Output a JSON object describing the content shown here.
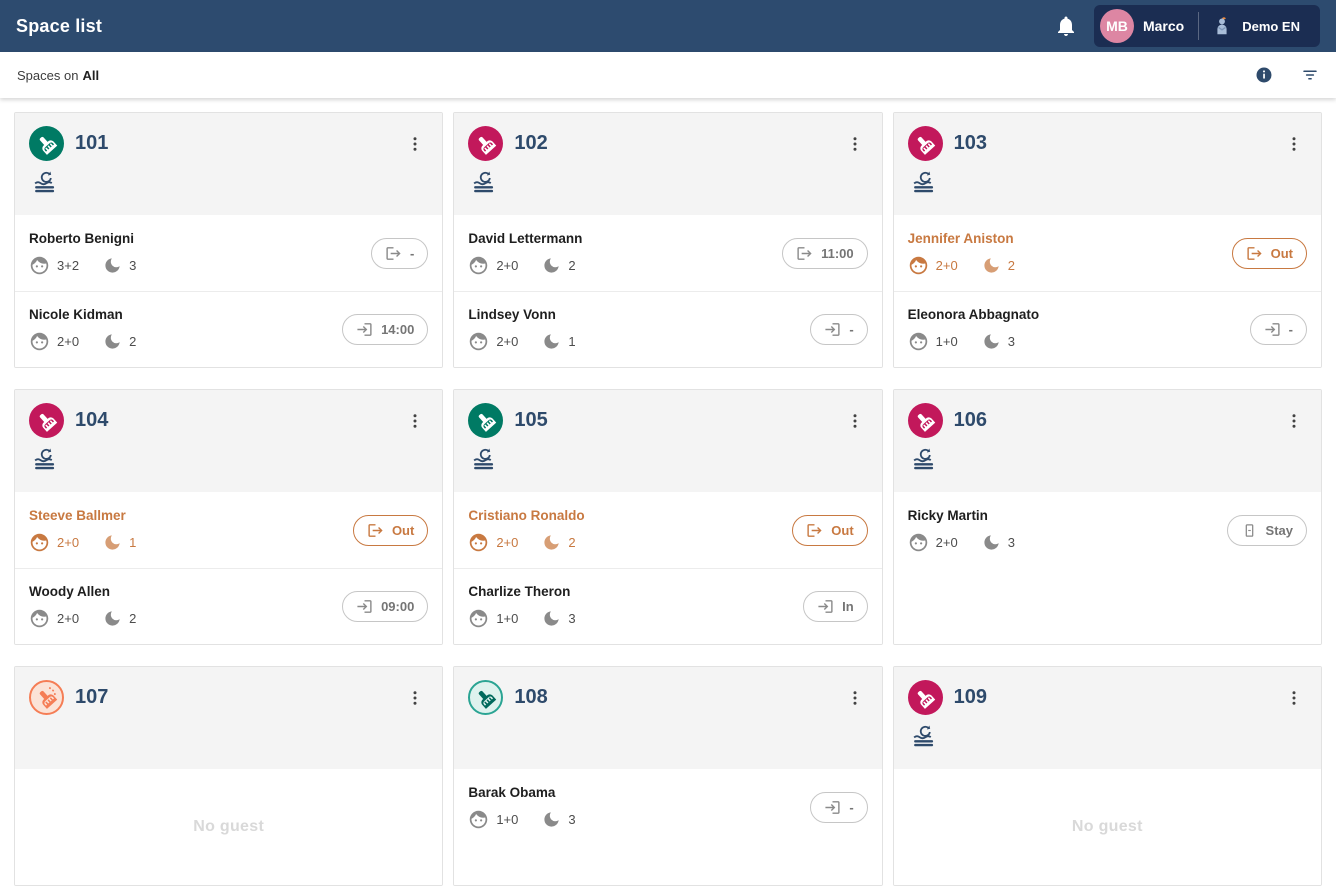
{
  "app_bar": {
    "title": "Space list",
    "user": {
      "initials": "MB",
      "name": "Marco"
    },
    "property": {
      "name": "Demo EN"
    }
  },
  "subheader": {
    "label_prefix": "Spaces on",
    "filter_value": "All"
  },
  "empty_label": "No guest",
  "colors": {
    "topbar": "#2d4b6f",
    "topbar_pill": "#1b2d52",
    "avatar_pink": "#dd86a3",
    "navy_text": "#2e4a6b",
    "status_clean": "#007a64",
    "status_dirty": "#c2185b",
    "status_cleaning": "#f57d55",
    "status_inspected": "#2aa493",
    "guest_highlight": "#c87941",
    "header_bg": "#f4f4f4"
  },
  "icons": {
    "bell": "notifications-icon",
    "broom": "housekeeping-broom-icon",
    "linen": "linen-change-icon",
    "face": "guest-face-icon",
    "moon": "nights-moon-icon",
    "checkout": "checkout-door-icon",
    "checkin": "checkin-door-icon",
    "stay": "stay-door-icon",
    "info": "info-icon",
    "filter": "filter-icon",
    "kebab": "more-menu-icon"
  },
  "cards": [
    {
      "room": "101",
      "status": "clean",
      "linen_change": true,
      "guests": [
        {
          "name": "Roberto Benigni",
          "highlight": false,
          "pax": "3+2",
          "nights": "3",
          "action": {
            "type": "checkout",
            "label": "-"
          }
        },
        {
          "name": "Nicole Kidman",
          "highlight": false,
          "pax": "2+0",
          "nights": "2",
          "action": {
            "type": "checkin",
            "label": "14:00"
          }
        }
      ]
    },
    {
      "room": "102",
      "status": "dirty",
      "linen_change": true,
      "guests": [
        {
          "name": "David Lettermann",
          "highlight": false,
          "pax": "2+0",
          "nights": "2",
          "action": {
            "type": "checkout",
            "label": "11:00"
          }
        },
        {
          "name": "Lindsey Vonn",
          "highlight": false,
          "pax": "2+0",
          "nights": "1",
          "action": {
            "type": "checkin",
            "label": "-"
          }
        }
      ]
    },
    {
      "room": "103",
      "status": "dirty",
      "linen_change": true,
      "guests": [
        {
          "name": "Jennifer Aniston",
          "highlight": true,
          "pax": "2+0",
          "nights": "2",
          "action": {
            "type": "checkout",
            "label": "Out"
          }
        },
        {
          "name": "Eleonora Abbagnato",
          "highlight": false,
          "pax": "1+0",
          "nights": "3",
          "action": {
            "type": "checkin",
            "label": "-"
          }
        }
      ]
    },
    {
      "room": "104",
      "status": "dirty",
      "linen_change": true,
      "guests": [
        {
          "name": "Steeve Ballmer",
          "highlight": true,
          "pax": "2+0",
          "nights": "1",
          "action": {
            "type": "checkout",
            "label": "Out"
          }
        },
        {
          "name": "Woody Allen",
          "highlight": false,
          "pax": "2+0",
          "nights": "2",
          "action": {
            "type": "checkin",
            "label": "09:00"
          }
        }
      ]
    },
    {
      "room": "105",
      "status": "clean",
      "linen_change": true,
      "guests": [
        {
          "name": "Cristiano Ronaldo",
          "highlight": true,
          "pax": "2+0",
          "nights": "2",
          "action": {
            "type": "checkout",
            "label": "Out"
          }
        },
        {
          "name": "Charlize Theron",
          "highlight": false,
          "pax": "1+0",
          "nights": "3",
          "action": {
            "type": "checkin",
            "label": "In"
          }
        }
      ]
    },
    {
      "room": "106",
      "status": "dirty",
      "linen_change": true,
      "guests": [
        {
          "name": "Ricky Martin",
          "highlight": false,
          "pax": "2+0",
          "nights": "3",
          "action": {
            "type": "stay",
            "label": "Stay"
          }
        }
      ]
    },
    {
      "room": "107",
      "status": "cleaning",
      "linen_change": false,
      "guests": []
    },
    {
      "room": "108",
      "status": "inspected",
      "linen_change": false,
      "guests": [
        {
          "name": "Barak Obama",
          "highlight": false,
          "pax": "1+0",
          "nights": "3",
          "action": {
            "type": "checkin",
            "label": "-"
          }
        }
      ]
    },
    {
      "room": "109",
      "status": "dirty",
      "linen_change": true,
      "guests": []
    }
  ]
}
